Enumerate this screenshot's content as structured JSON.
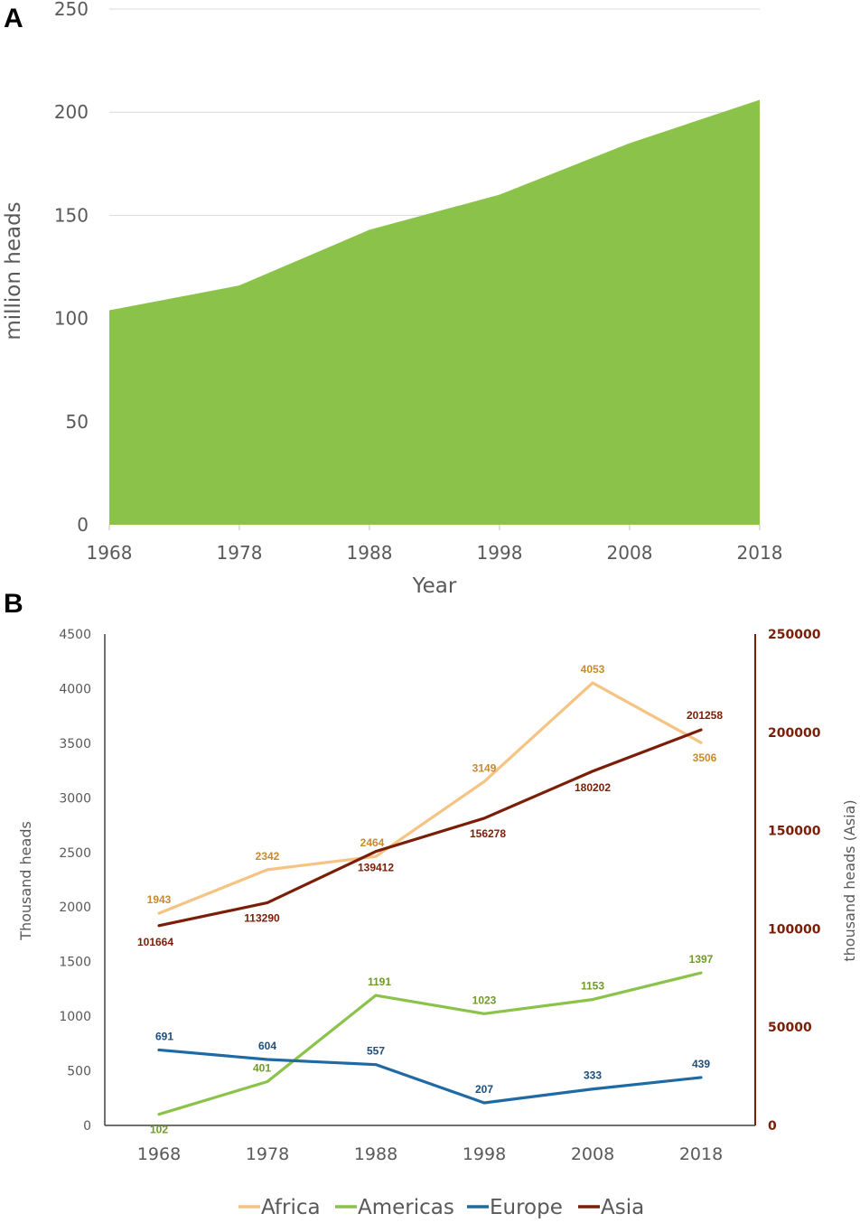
{
  "panels": {
    "a_label": "A",
    "b_label": "B"
  },
  "colors": {
    "area": "#8bc34a",
    "gridline": "#d9d9d9",
    "tick_text": "#595959",
    "axis_line": "#404040",
    "asia_axis": "#7b1e07",
    "africa_label": "#c78a2c"
  },
  "chart_data": [
    {
      "type": "area",
      "title": "",
      "xlabel": "Year",
      "ylabel": "million heads",
      "ylim": [
        0,
        250
      ],
      "y_ticks": [
        0,
        50,
        100,
        150,
        200,
        250
      ],
      "x_ticks": [
        1968,
        1978,
        1988,
        1998,
        2008,
        2018
      ],
      "grid": true,
      "x": [
        1968,
        1978,
        1988,
        1998,
        2008,
        2018
      ],
      "values": [
        104,
        116,
        143,
        160,
        185,
        206
      ],
      "color": "#8bc34a"
    },
    {
      "type": "line",
      "title": "",
      "xlabel": "",
      "ylabel": "Thousand heads",
      "y2label": "thousand heads (Asia)",
      "ylim": [
        0,
        4500
      ],
      "y2lim": [
        0,
        250000
      ],
      "y_ticks": [
        0,
        500,
        1000,
        1500,
        2000,
        2500,
        3000,
        3500,
        4000,
        4500
      ],
      "y2_ticks": [
        0,
        50000,
        100000,
        150000,
        200000,
        250000
      ],
      "categories": [
        1968,
        1978,
        1988,
        1998,
        2008,
        2018
      ],
      "grid": false,
      "legend_position": "bottom",
      "series": [
        {
          "name": "Africa",
          "axis": "left",
          "color": "#f5c483",
          "label_color": "#c78a2c",
          "values": [
            1943,
            2342,
            2464,
            3149,
            4053,
            3506
          ]
        },
        {
          "name": "Americas",
          "axis": "left",
          "color": "#8bc34a",
          "label_color": "#6f9a2c",
          "values": [
            102,
            401,
            1191,
            1023,
            1153,
            1397
          ]
        },
        {
          "name": "Europe",
          "axis": "left",
          "color": "#1f6aa3",
          "label_color": "#1f4e79",
          "values": [
            691,
            604,
            557,
            207,
            333,
            439
          ]
        },
        {
          "name": "Asia",
          "axis": "right",
          "color": "#7b1e07",
          "label_color": "#7b1e07",
          "values": [
            101664,
            113290,
            139412,
            156278,
            180202,
            201258
          ]
        }
      ]
    }
  ]
}
